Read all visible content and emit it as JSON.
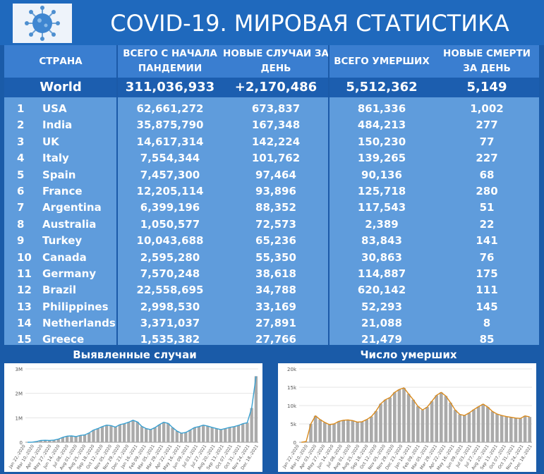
{
  "header": {
    "title": "COVID-19. МИРОВАЯ СТАТИСТИКА",
    "logo_icon": "coronavirus-icon"
  },
  "table": {
    "columns": [
      "СТРАНА",
      "ВСЕГО С НАЧАЛА ПАНДЕМИИ",
      "НОВЫЕ СЛУЧАИ ЗА ДЕНЬ",
      "ВСЕГО УМЕРШИХ",
      "НОВЫЕ СМЕРТИ ЗА ДЕНЬ"
    ],
    "world": {
      "label": "World",
      "total": "311,036,933",
      "new_cases": "+2,170,486",
      "deaths": "5,512,362",
      "new_deaths": "5,149"
    },
    "rows": [
      {
        "rank": "1",
        "country": "USA",
        "total": "62,661,272",
        "new_cases": "673,837",
        "deaths": "861,336",
        "new_deaths": "1,002"
      },
      {
        "rank": "2",
        "country": "India",
        "total": "35,875,790",
        "new_cases": "167,348",
        "deaths": "484,213",
        "new_deaths": "277"
      },
      {
        "rank": "3",
        "country": "UK",
        "total": "14,617,314",
        "new_cases": "142,224",
        "deaths": "150,230",
        "new_deaths": "77"
      },
      {
        "rank": "4",
        "country": "Italy",
        "total": "7,554,344",
        "new_cases": "101,762",
        "deaths": "139,265",
        "new_deaths": "227"
      },
      {
        "rank": "5",
        "country": "Spain",
        "total": "7,457,300",
        "new_cases": "97,464",
        "deaths": "90,136",
        "new_deaths": "68"
      },
      {
        "rank": "6",
        "country": "France",
        "total": "12,205,114",
        "new_cases": "93,896",
        "deaths": "125,718",
        "new_deaths": "280"
      },
      {
        "rank": "7",
        "country": "Argentina",
        "total": "6,399,196",
        "new_cases": "88,352",
        "deaths": "117,543",
        "new_deaths": "51"
      },
      {
        "rank": "8",
        "country": "Australia",
        "total": "1,050,577",
        "new_cases": "72,573",
        "deaths": "2,389",
        "new_deaths": "22"
      },
      {
        "rank": "9",
        "country": "Turkey",
        "total": "10,043,688",
        "new_cases": "65,236",
        "deaths": "83,843",
        "new_deaths": "141"
      },
      {
        "rank": "10",
        "country": "Canada",
        "total": "2,595,280",
        "new_cases": "55,350",
        "deaths": "30,863",
        "new_deaths": "76"
      },
      {
        "rank": "11",
        "country": "Germany",
        "total": "7,570,248",
        "new_cases": "38,618",
        "deaths": "114,887",
        "new_deaths": "175"
      },
      {
        "rank": "12",
        "country": "Brazil",
        "total": "22,558,695",
        "new_cases": "34,788",
        "deaths": "620,142",
        "new_deaths": "111"
      },
      {
        "rank": "13",
        "country": "Philippines",
        "total": "2,998,530",
        "new_cases": "33,169",
        "deaths": "52,293",
        "new_deaths": "145"
      },
      {
        "rank": "14",
        "country": "Netherlands",
        "total": "3,371,037",
        "new_cases": "27,891",
        "deaths": "21,088",
        "new_deaths": "8"
      },
      {
        "rank": "15",
        "country": "Greece",
        "total": "1,535,382",
        "new_cases": "27,766",
        "deaths": "21,479",
        "new_deaths": "85"
      }
    ]
  },
  "charts": {
    "cases": {
      "title": "Выявленные случаи",
      "yticks": [
        "0",
        "1M",
        "2M",
        "3M"
      ],
      "xticks": [
        "Jan 22,-2020",
        "Mar 10,-2020",
        "Apr 03,-2020",
        "May 27,-2020",
        "Jun 14,-2020",
        "Jul 08,-2020",
        "Aug 01,-2020",
        "Aug 25,-2020",
        "Sep 18,-2020",
        "Oct 12,-2020",
        "Nov 05,-2020",
        "Nov 29,-2020",
        "Dec 23,-2020",
        "Jan 16,-2021",
        "Feb 09,-2021",
        "Mar 05,-2021",
        "Mar 29,-2021",
        "Apr 22,-2021",
        "May 16,-2021",
        "Jun 09,-2021",
        "Jul 03,-2021",
        "Jul 27,-2021",
        "Aug 20,-2021",
        "Sep 13,-2021",
        "Oct 07,-2021",
        "Oct 31,-2021",
        "Nov 24,-2021",
        "Dec 18,-2021"
      ],
      "accent": "#3aa0d0"
    },
    "deaths": {
      "title": "Число умерших",
      "yticks": [
        "0",
        "5k",
        "10k",
        "15k",
        "20k"
      ],
      "xticks": [
        "Jan 22,-2020",
        "Mar 10,-2020",
        "Apr 03,-2020",
        "May 27,-2020",
        "Jun 14,-2020",
        "Jul 08,-2020",
        "Aug 01,-2020",
        "Aug 25,-2020",
        "Sep 18,-2020",
        "Oct 12,-2020",
        "Nov 05,-2020",
        "Nov 29,-2020",
        "Dec 23,-2020",
        "Jan 16,-2021",
        "Feb 09,-2021",
        "Mar 05,-2021",
        "Mar 29,-2021",
        "Apr 22,-2021",
        "May 16,-2021",
        "Jun 09,-2021",
        "Jul 03,-2021",
        "Jul 27,-2021",
        "Aug 20,-2021",
        "Sep 13,-2021",
        "Oct 07,-2021",
        "Oct 31,-2021",
        "Nov 24,-2021",
        "Dec 18,-2021"
      ],
      "accent": "#d98a1c"
    }
  },
  "chart_data": [
    {
      "type": "bar",
      "ylim": [
        0,
        3000000
      ],
      "series": [
        {
          "values": [
            0,
            2000,
            30000,
            75000,
            80000,
            75000,
            90000,
            130000,
            200000,
            250000,
            260000,
            230000,
            280000,
            300000,
            380000,
            500000,
            560000,
            640000,
            700000,
            680000,
            620000,
            720000,
            760000,
            820000,
            900000,
            830000,
            650000,
            560000,
            520000,
            600000,
            720000,
            820000,
            770000,
            600000,
            460000,
            370000,
            400000,
            500000,
            600000,
            640000,
            700000,
            660000,
            610000,
            560000,
            520000,
            560000,
            610000,
            640000,
            690000,
            760000,
            800000,
            1400000,
            2700000
          ]
        }
      ]
    },
    {
      "type": "bar",
      "ylim": [
        0,
        20000
      ],
      "series": [
        {
          "values": [
            0,
            200,
            5000,
            7200,
            6200,
            5400,
            4800,
            5000,
            5700,
            6000,
            6100,
            5900,
            5500,
            5600,
            6200,
            7000,
            8500,
            10500,
            11600,
            12200,
            13600,
            14400,
            14800,
            13200,
            11600,
            9800,
            8800,
            9600,
            11200,
            12800,
            13600,
            12600,
            10800,
            8800,
            7600,
            7300,
            8000,
            8900,
            9700,
            10400,
            9600,
            8400,
            7700,
            7300,
            7000,
            6800,
            6600,
            6500,
            7200,
            6900
          ]
        }
      ]
    }
  ]
}
